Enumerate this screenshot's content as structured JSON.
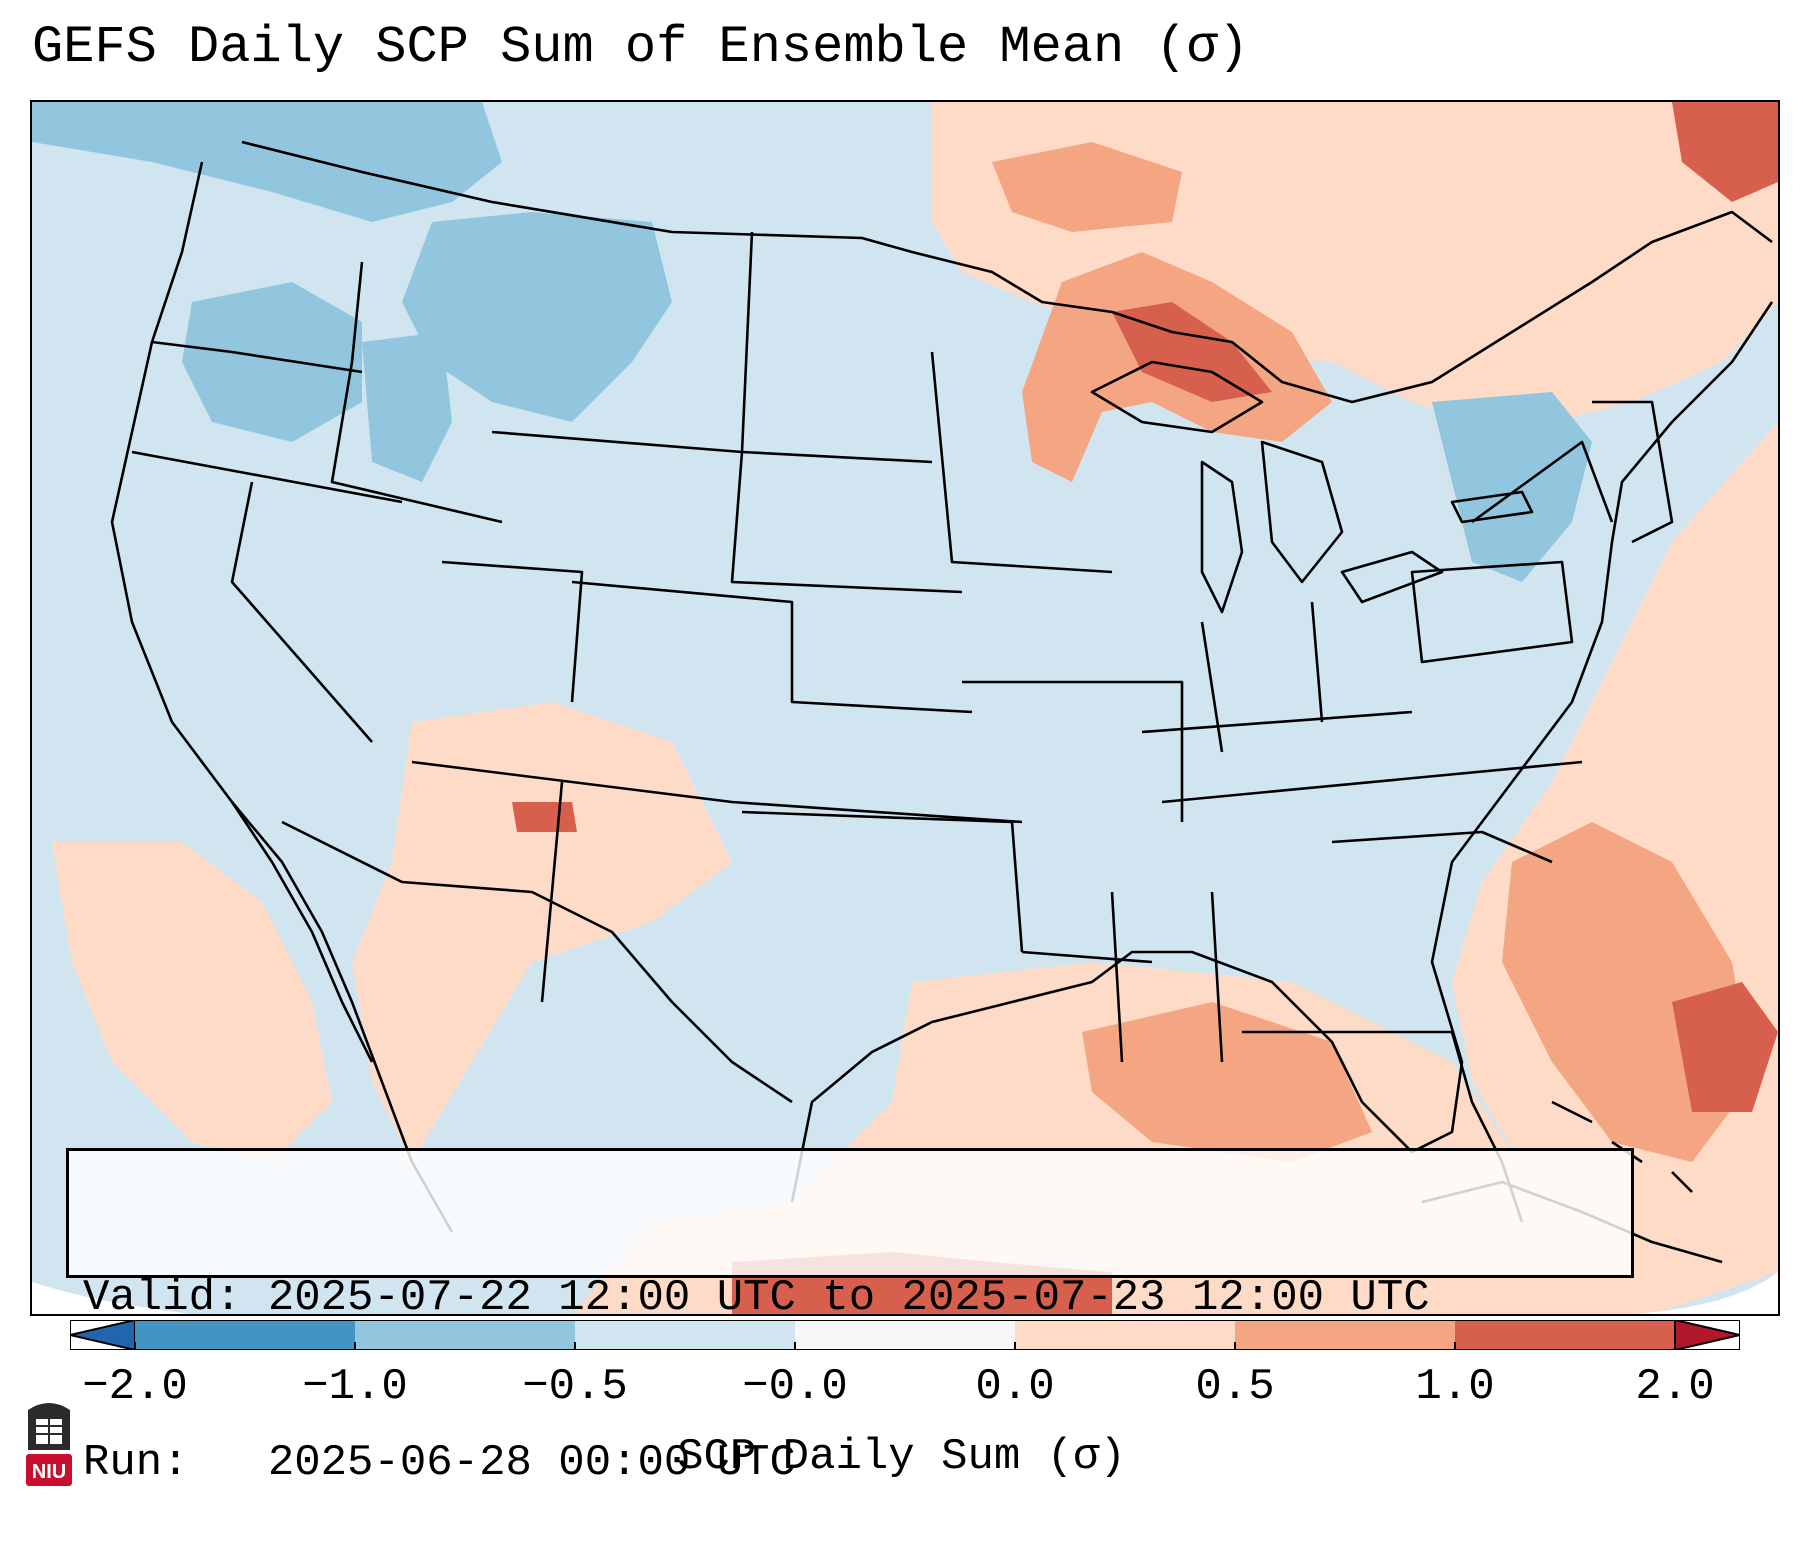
{
  "title": "GEFS Daily SCP Sum of Ensemble Mean (σ)",
  "info": {
    "valid_label": "Valid:",
    "valid_value": "2025-07-22 12:00 UTC to 2025-07-23 12:00 UTC",
    "run_label": "Run:",
    "run_value": "2025-06-28 00:00 UTC"
  },
  "colorbar": {
    "title": "SCP Daily Sum (σ)",
    "tick_labels": [
      "−2.0",
      "−1.0",
      "−0.5",
      "−0.0",
      "0.0",
      "0.5",
      "1.0",
      "2.0"
    ],
    "colors": [
      "#4393c3",
      "#92c5de",
      "#d1e5f0",
      "#f7f7f7",
      "#fddbc7",
      "#f4a582",
      "#d6604d"
    ],
    "under_color": "#2166ac",
    "over_color": "#b2182b"
  },
  "map": {
    "background_color": "#d1e5f0",
    "border_color": "#000000"
  },
  "logo": {
    "text": "NIU",
    "color": "#c8102e"
  }
}
